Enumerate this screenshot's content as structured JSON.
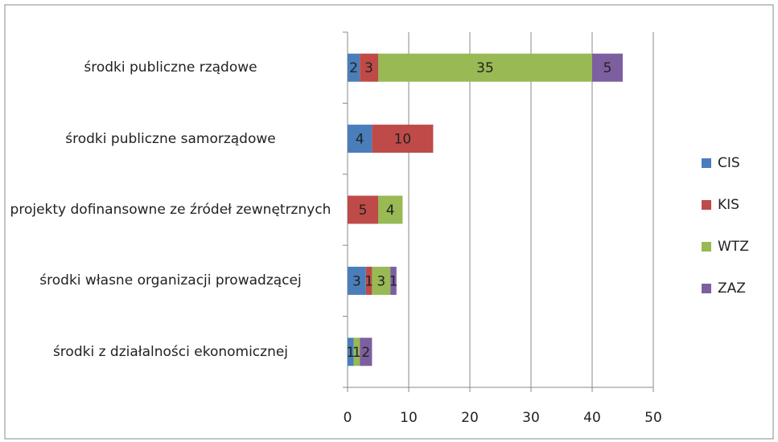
{
  "chart_data": {
    "type": "stacked_barh",
    "categories": [
      "środki publiczne rządowe",
      "środki publiczne samorządowe",
      "projekty dofinansowne ze źródeł zewnętrznych",
      "środki własne organizacji prowadzącej",
      "środki z działalności ekonomicznej"
    ],
    "series": [
      {
        "name": "CIS",
        "color": "#4a7ebb",
        "values": [
          2,
          4,
          null,
          3,
          1
        ]
      },
      {
        "name": "KIS",
        "color": "#be4b48",
        "values": [
          3,
          10,
          5,
          1,
          null
        ]
      },
      {
        "name": "WTZ",
        "color": "#98b954",
        "values": [
          35,
          null,
          4,
          3,
          1
        ]
      },
      {
        "name": "ZAZ",
        "color": "#7d5fa0",
        "values": [
          5,
          null,
          null,
          1,
          2
        ]
      }
    ],
    "xlim": [
      0,
      50
    ],
    "xticks": [
      0,
      10,
      20,
      30,
      40,
      50
    ],
    "grid": true,
    "legend": "right"
  }
}
